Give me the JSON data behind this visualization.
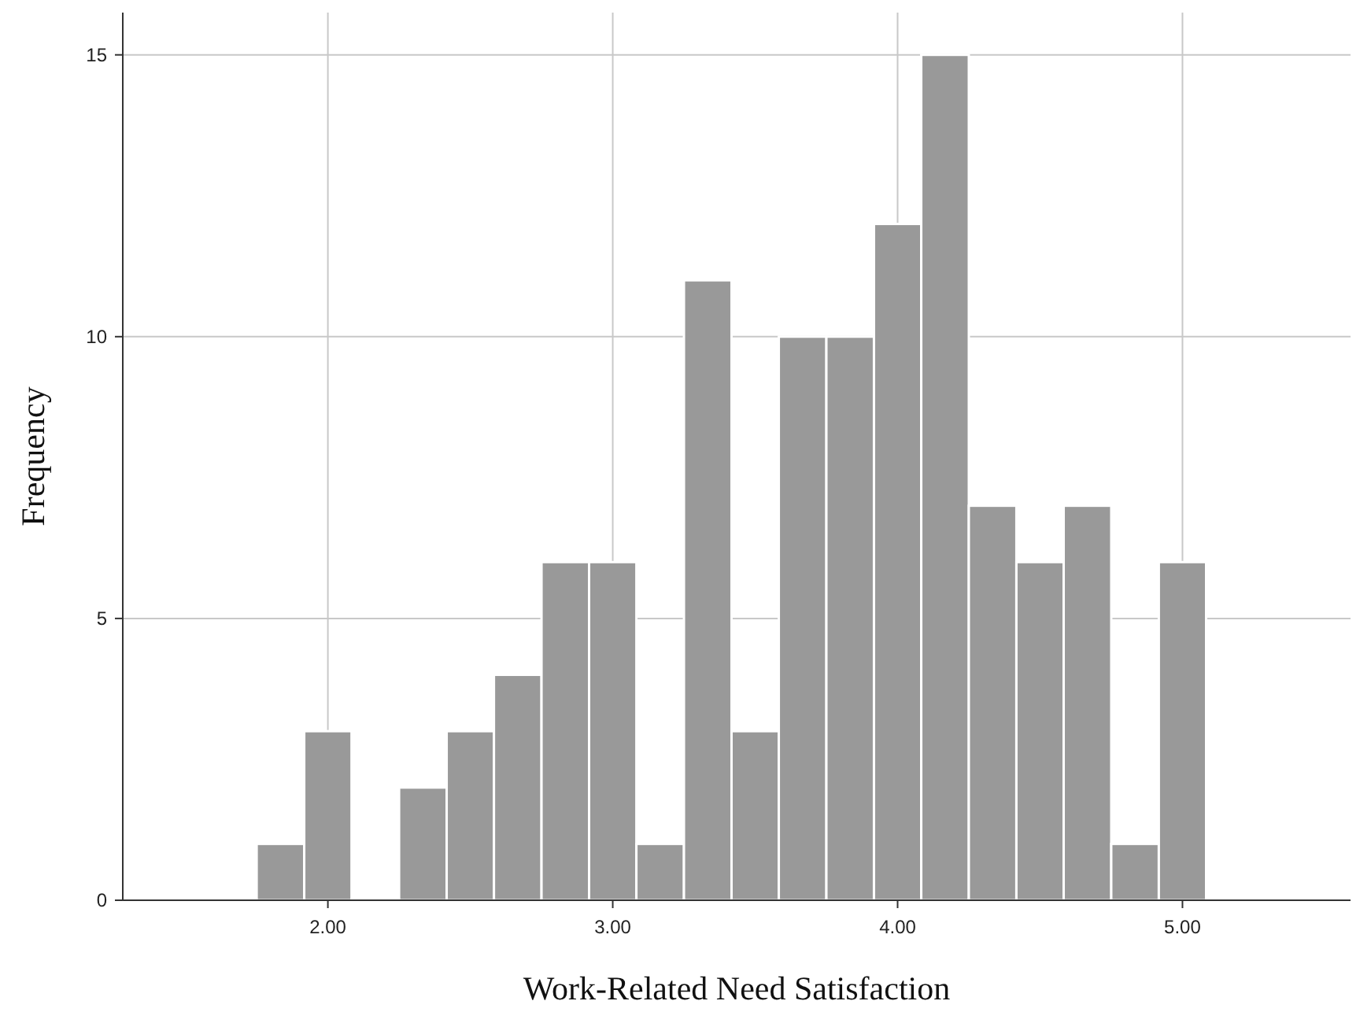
{
  "chart_data": {
    "type": "histogram",
    "xlabel": "Work-Related Need Satisfaction",
    "ylabel": "Frequency",
    "bins": [
      1.75,
      1.917,
      2.083,
      2.25,
      2.417,
      2.583,
      2.75,
      2.917,
      3.083,
      3.25,
      3.417,
      3.583,
      3.75,
      3.917,
      4.083,
      4.25,
      4.417,
      4.583,
      4.75,
      4.917,
      5.083
    ],
    "values": [
      1,
      3,
      0,
      2,
      3,
      4,
      6,
      6,
      1,
      11,
      3,
      10,
      10,
      12,
      15,
      7,
      6,
      7,
      1,
      6
    ],
    "color": "#999999",
    "xlim": [
      1.28,
      5.59
    ],
    "ylim": [
      0,
      15.75
    ],
    "xticks": [
      {
        "value": 2,
        "label": "2.00"
      },
      {
        "value": 3,
        "label": "3.00"
      },
      {
        "value": 4,
        "label": "4.00"
      },
      {
        "value": 5,
        "label": "5.00"
      }
    ],
    "yticks": [
      0,
      5,
      10,
      15
    ],
    "grid": true
  }
}
